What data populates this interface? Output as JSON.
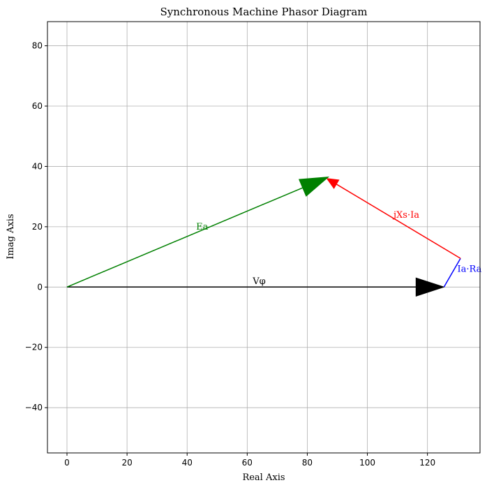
{
  "chart_data": {
    "type": "phasor",
    "title": "Synchronous Machine Phasor Diagram",
    "xlabel": "Real Axis",
    "ylabel": "Imag Axis",
    "xlim": [
      -6.5,
      137.5
    ],
    "ylim": [
      -55,
      88
    ],
    "xticks": [
      0,
      20,
      40,
      60,
      80,
      100,
      120
    ],
    "yticks": [
      -40,
      -20,
      0,
      20,
      40,
      60,
      80
    ],
    "x_tick_labels": [
      "0",
      "20",
      "40",
      "60",
      "80",
      "100",
      "120"
    ],
    "y_tick_labels": [
      "−40",
      "−20",
      "0",
      "20",
      "40",
      "60",
      "80"
    ],
    "grid": true,
    "series": [
      {
        "name": "Vφ",
        "from": [
          0,
          0
        ],
        "to": [
          125.5,
          0
        ],
        "color": "#000000",
        "head": "large",
        "label_at": [
          64,
          1
        ]
      },
      {
        "name": "Ia·Ra",
        "from": [
          125.5,
          0
        ],
        "to": [
          131,
          9.5
        ],
        "color": "#0000ff",
        "head": "none",
        "label_at": [
          134,
          5
        ]
      },
      {
        "name": "jXs·Ia",
        "from": [
          131,
          9.5
        ],
        "to": [
          86.5,
          36
        ],
        "color": "#ff0000",
        "head": "small",
        "label_at": [
          113,
          23
        ]
      },
      {
        "name": "Ea",
        "from": [
          0,
          0
        ],
        "to": [
          87,
          36.5
        ],
        "color": "#008000",
        "head": "large",
        "label_at": [
          45,
          19
        ]
      }
    ]
  }
}
